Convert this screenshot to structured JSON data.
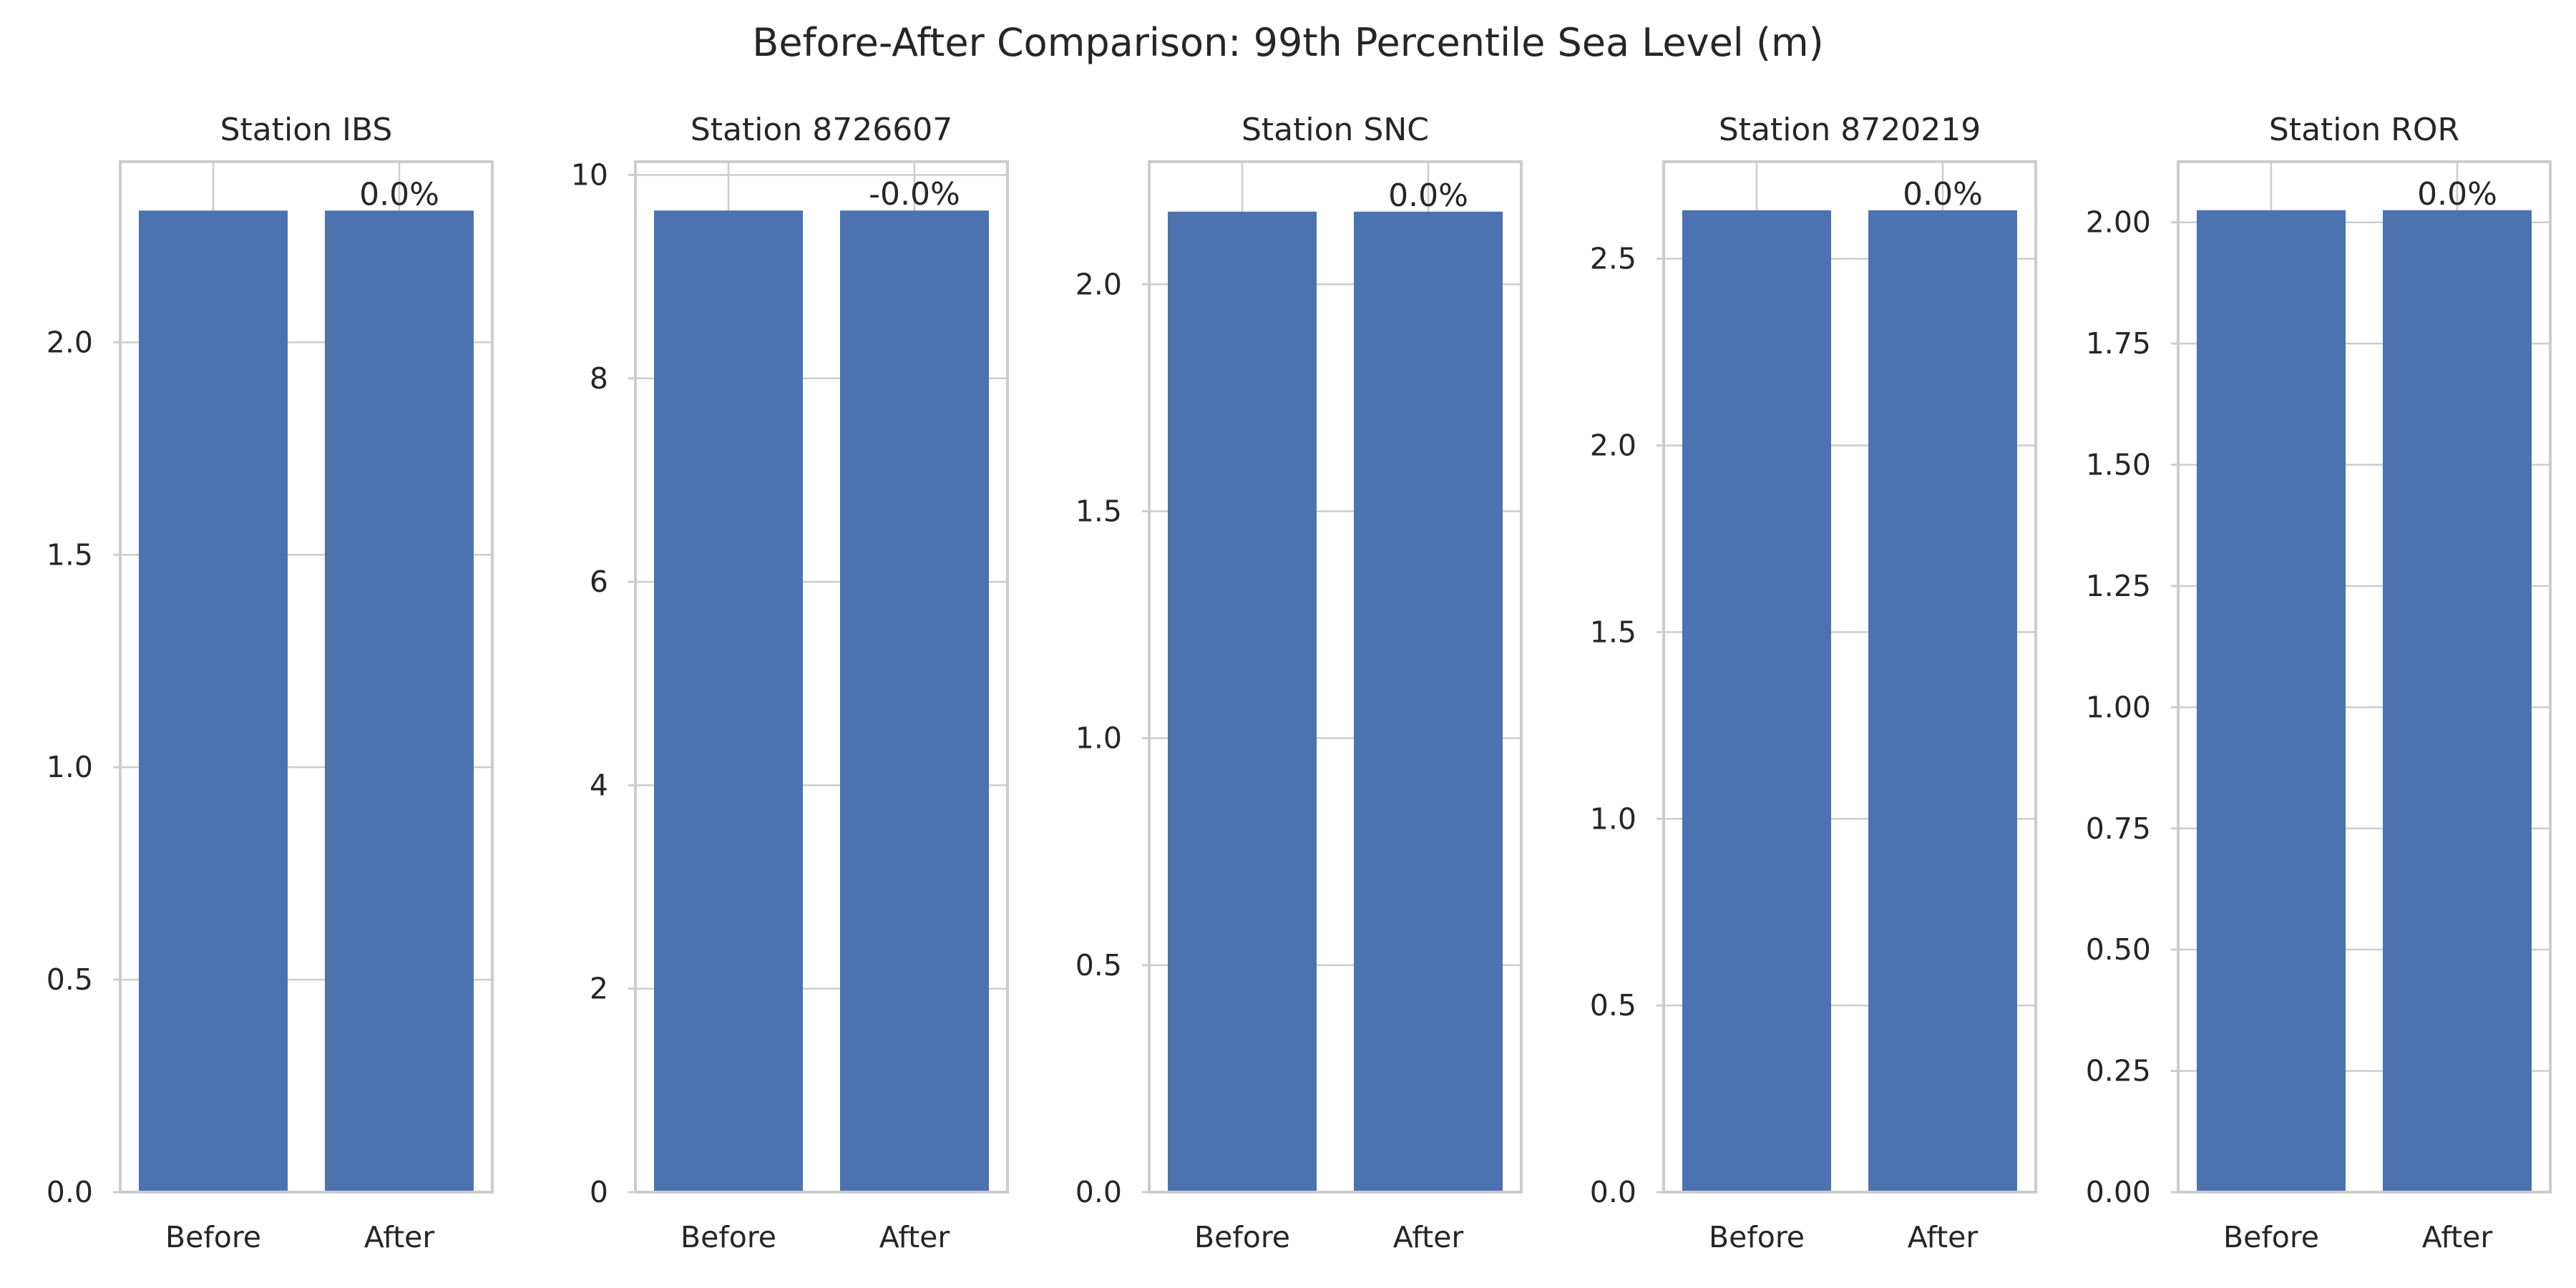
{
  "chart_data": {
    "type": "bar",
    "title": "Before-After Comparison: 99th Percentile Sea Level (m)",
    "colors": {
      "bar": "#4c72b0",
      "grid": "#cccccc",
      "text": "#262626"
    },
    "grid": true,
    "panels": [
      {
        "title": "Station IBS",
        "categories": [
          "Before",
          "After"
        ],
        "values": [
          2.31,
          2.31
        ],
        "annotation": "0.0%",
        "ylim": [
          0,
          2.425
        ],
        "yticks": [
          0.0,
          0.5,
          1.0,
          1.5,
          2.0
        ],
        "ytick_labels": [
          "0.0",
          "0.5",
          "1.0",
          "1.5",
          "2.0"
        ]
      },
      {
        "title": "Station 8726607",
        "categories": [
          "Before",
          "After"
        ],
        "values": [
          9.65,
          9.65
        ],
        "annotation": "-0.0%",
        "ylim": [
          0,
          10.13
        ],
        "yticks": [
          0,
          2,
          4,
          6,
          8,
          10
        ],
        "ytick_labels": [
          "0",
          "2",
          "4",
          "6",
          "8",
          "10"
        ]
      },
      {
        "title": "Station SNC",
        "categories": [
          "Before",
          "After"
        ],
        "values": [
          2.16,
          2.16
        ],
        "annotation": "0.0%",
        "ylim": [
          0,
          2.27
        ],
        "yticks": [
          0.0,
          0.5,
          1.0,
          1.5,
          2.0
        ],
        "ytick_labels": [
          "0.0",
          "0.5",
          "1.0",
          "1.5",
          "2.0"
        ]
      },
      {
        "title": "Station 8720219",
        "categories": [
          "Before",
          "After"
        ],
        "values": [
          2.63,
          2.63
        ],
        "annotation": "0.0%",
        "ylim": [
          0,
          2.76
        ],
        "yticks": [
          0.0,
          0.5,
          1.0,
          1.5,
          2.0,
          2.5
        ],
        "ytick_labels": [
          "0.0",
          "0.5",
          "1.0",
          "1.5",
          "2.0",
          "2.5"
        ]
      },
      {
        "title": "Station ROR",
        "categories": [
          "Before",
          "After"
        ],
        "values": [
          2.025,
          2.025
        ],
        "annotation": "0.0%",
        "ylim": [
          0,
          2.125
        ],
        "yticks": [
          0.0,
          0.25,
          0.5,
          0.75,
          1.0,
          1.25,
          1.5,
          1.75,
          2.0
        ],
        "ytick_labels": [
          "0.00",
          "0.25",
          "0.50",
          "0.75",
          "1.00",
          "1.25",
          "1.50",
          "1.75",
          "2.00"
        ]
      }
    ]
  }
}
